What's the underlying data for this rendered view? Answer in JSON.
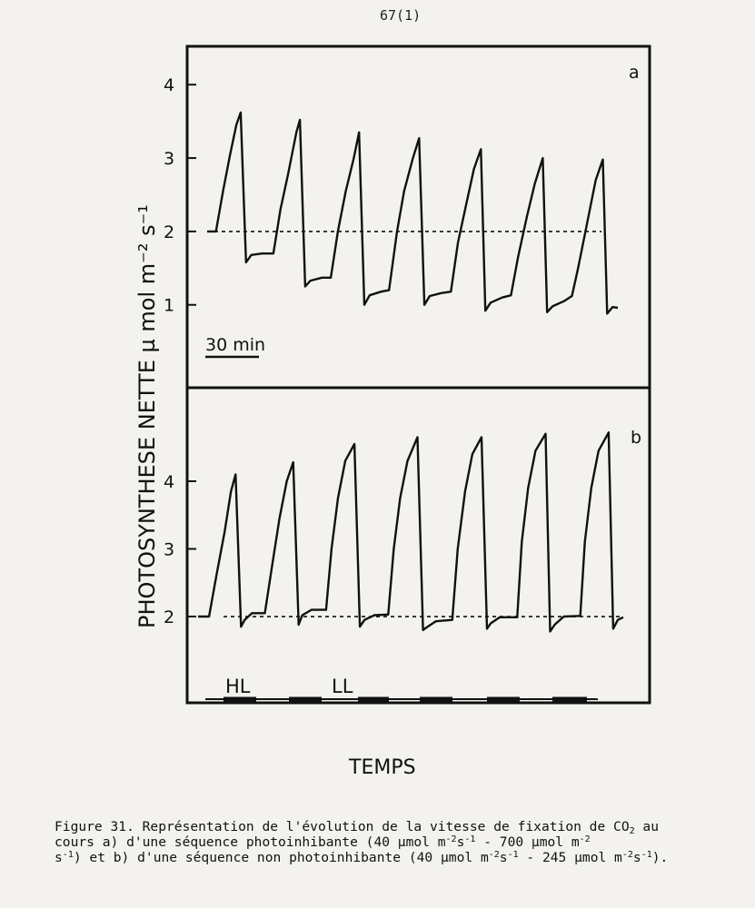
{
  "page_number": "67(1)",
  "caption": {
    "line1_a": "Figure 31. Représentation de l'évolution de la vitesse de fixation de CO",
    "line1_b": "2",
    "line1_c": " au",
    "line2_a": "cours a) d'une séquence photoinhibante (40 µmol m",
    "line2_b": "-2",
    "line2_c": "s",
    "line2_d": "-1",
    "line2_e": " - 700 µmol m",
    "line2_f": "-2",
    "line3_a": "s",
    "line3_b": "-1",
    "line3_c": ") et b) d'une séquence non photoinhibante (40 µmol m",
    "line3_d": "-2",
    "line3_e": "s",
    "line3_f": "-1",
    "line3_g": " - 245 µmol m",
    "line3_h": "-2",
    "line3_i": "s",
    "line3_j": "-1",
    "line3_k": ")."
  },
  "chart_data": [
    {
      "type": "line",
      "panel": "a",
      "ylabel": "PHOTOSYNTHESE NETTE  µ mol m⁻² s⁻¹",
      "yticks": [
        "1",
        "2",
        "3",
        "4"
      ],
      "ylim": [
        0.7,
        4.25
      ],
      "scale_bar_label": "30 min",
      "reference_line": 2.0,
      "x_unit": "min",
      "xlim": [
        0,
        465
      ],
      "series": [
        {
          "points": [
            [
              0,
              2.0
            ],
            [
              10,
              2.0
            ],
            [
              18,
              2.55
            ],
            [
              26,
              3.05
            ],
            [
              33,
              3.45
            ],
            [
              38,
              3.62
            ],
            [
              44,
              1.58
            ],
            [
              50,
              1.68
            ],
            [
              62,
              1.7
            ],
            [
              75,
              1.7
            ],
            [
              83,
              2.3
            ],
            [
              92,
              2.8
            ],
            [
              101,
              3.35
            ],
            [
              105,
              3.52
            ],
            [
              111,
              1.25
            ],
            [
              117,
              1.33
            ],
            [
              130,
              1.37
            ],
            [
              140,
              1.37
            ],
            [
              148,
              2.0
            ],
            [
              157,
              2.55
            ],
            [
              166,
              3.0
            ],
            [
              172,
              3.35
            ],
            [
              178,
              1.0
            ],
            [
              184,
              1.13
            ],
            [
              197,
              1.18
            ],
            [
              206,
              1.2
            ],
            [
              215,
              2.0
            ],
            [
              223,
              2.55
            ],
            [
              233,
              3.0
            ],
            [
              240,
              3.27
            ],
            [
              246,
              1.0
            ],
            [
              252,
              1.12
            ],
            [
              265,
              1.16
            ],
            [
              276,
              1.18
            ],
            [
              284,
              1.85
            ],
            [
              293,
              2.35
            ],
            [
              302,
              2.85
            ],
            [
              310,
              3.12
            ],
            [
              315,
              0.92
            ],
            [
              321,
              1.03
            ],
            [
              334,
              1.1
            ],
            [
              344,
              1.13
            ],
            [
              352,
              1.65
            ],
            [
              362,
              2.2
            ],
            [
              371,
              2.65
            ],
            [
              380,
              3.0
            ],
            [
              385,
              0.9
            ],
            [
              391,
              0.98
            ],
            [
              404,
              1.05
            ],
            [
              413,
              1.12
            ],
            [
              420,
              1.5
            ],
            [
              430,
              2.1
            ],
            [
              440,
              2.7
            ],
            [
              448,
              2.98
            ],
            [
              453,
              0.88
            ],
            [
              459,
              0.97
            ],
            [
              465,
              0.96
            ]
          ]
        }
      ]
    },
    {
      "type": "line",
      "panel": "b",
      "yticks": [
        "2",
        "3",
        "4"
      ],
      "ylim": [
        1.45,
        5.1
      ],
      "xlabel": "TEMPS",
      "reference_line": 2.0,
      "x_unit": "min",
      "xlim": [
        0,
        465
      ],
      "light_bars": [
        "HL",
        "LL"
      ],
      "series": [
        {
          "points": [
            [
              0,
              2.0
            ],
            [
              12,
              2.0
            ],
            [
              20,
              2.6
            ],
            [
              29,
              3.25
            ],
            [
              36,
              3.85
            ],
            [
              41,
              4.1
            ],
            [
              47,
              1.85
            ],
            [
              51,
              1.95
            ],
            [
              59,
              2.05
            ],
            [
              73,
              2.05
            ],
            [
              81,
              2.75
            ],
            [
              89,
              3.45
            ],
            [
              97,
              4.0
            ],
            [
              104,
              4.28
            ],
            [
              110,
              1.88
            ],
            [
              114,
              2.02
            ],
            [
              124,
              2.1
            ],
            [
              140,
              2.1
            ],
            [
              146,
              3.0
            ],
            [
              153,
              3.75
            ],
            [
              161,
              4.3
            ],
            [
              171,
              4.55
            ],
            [
              177,
              1.85
            ],
            [
              182,
              1.95
            ],
            [
              193,
              2.02
            ],
            [
              208,
              2.03
            ],
            [
              214,
              3.0
            ],
            [
              221,
              3.75
            ],
            [
              229,
              4.3
            ],
            [
              240,
              4.65
            ],
            [
              246,
              1.8
            ],
            [
              251,
              1.85
            ],
            [
              260,
              1.93
            ],
            [
              278,
              1.95
            ],
            [
              284,
              3.0
            ],
            [
              292,
              3.85
            ],
            [
              300,
              4.4
            ],
            [
              310,
              4.65
            ],
            [
              316,
              1.82
            ],
            [
              320,
              1.9
            ],
            [
              330,
              1.99
            ],
            [
              349,
              1.99
            ],
            [
              354,
              3.1
            ],
            [
              361,
              3.9
            ],
            [
              369,
              4.45
            ],
            [
              380,
              4.7
            ],
            [
              385,
              1.78
            ],
            [
              390,
              1.88
            ],
            [
              400,
              2.0
            ],
            [
              418,
              2.01
            ],
            [
              423,
              3.1
            ],
            [
              430,
              3.9
            ],
            [
              438,
              4.45
            ],
            [
              449,
              4.72
            ],
            [
              454,
              1.82
            ],
            [
              459,
              1.95
            ],
            [
              465,
              1.99
            ]
          ]
        }
      ]
    }
  ]
}
